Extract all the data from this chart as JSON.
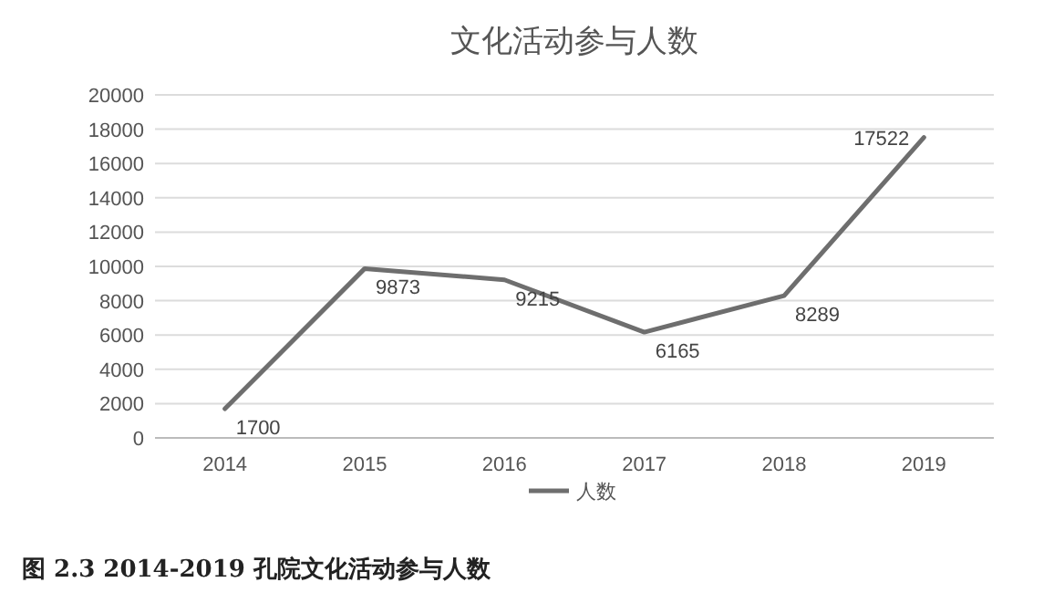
{
  "chart_data": {
    "type": "line",
    "title": "文化活动参与人数",
    "categories": [
      "2014",
      "2015",
      "2016",
      "2017",
      "2018",
      "2019"
    ],
    "series": [
      {
        "name": "人数",
        "color": "#6e6e6e",
        "values": [
          1700,
          9873,
          9215,
          6165,
          8289,
          17522
        ]
      }
    ],
    "ylim": [
      0,
      20000
    ],
    "yticks": [
      0,
      2000,
      4000,
      6000,
      8000,
      10000,
      12000,
      14000,
      16000,
      18000,
      20000
    ],
    "grid": "y",
    "legend": "bottom",
    "data_labels": true,
    "annotations": [
      "图 2.3 2014-2019 孔院文化活动参与人数"
    ]
  }
}
